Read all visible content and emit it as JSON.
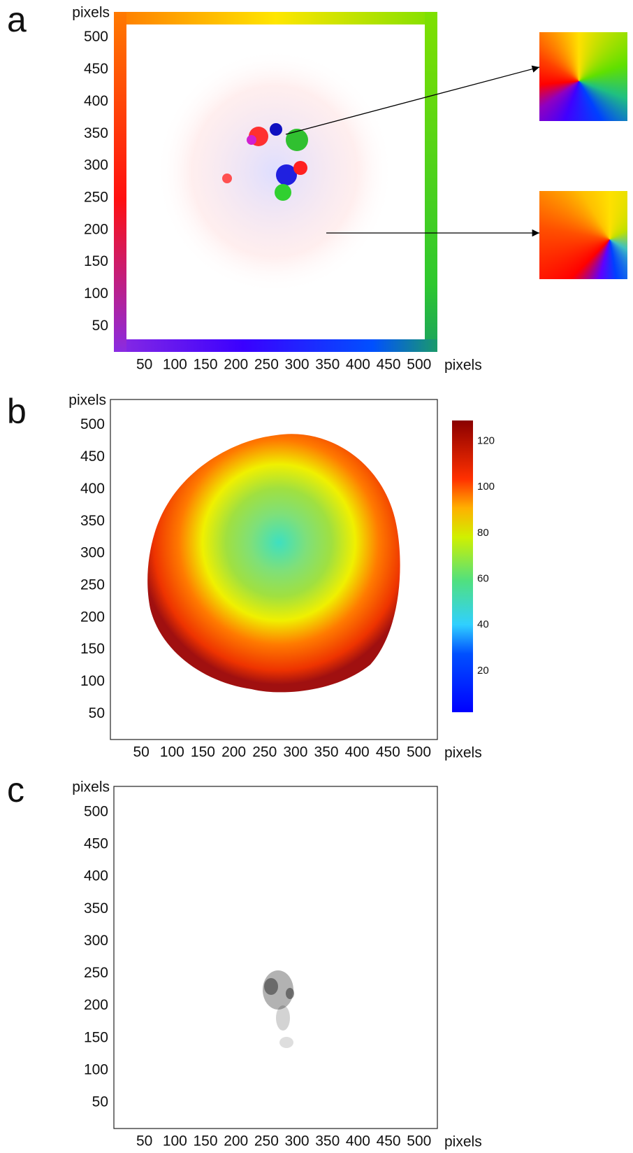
{
  "chart_data": [
    {
      "type": "image",
      "panel_label": "a",
      "xlabel": "pixels",
      "ylabel": "pixels",
      "xlim": [
        0,
        530
      ],
      "ylim": [
        10,
        540
      ],
      "xticks": [
        50,
        100,
        150,
        200,
        250,
        300,
        350,
        400,
        450,
        500
      ],
      "yticks": [
        50,
        100,
        150,
        200,
        250,
        300,
        350,
        400,
        450,
        500
      ]
    },
    {
      "type": "heatmap",
      "panel_label": "b",
      "xlabel": "pixels",
      "ylabel": "pixels",
      "xlim": [
        0,
        530
      ],
      "ylim": [
        10,
        540
      ],
      "xticks": [
        50,
        100,
        150,
        200,
        250,
        300,
        350,
        400,
        450,
        500
      ],
      "yticks": [
        50,
        100,
        150,
        200,
        250,
        300,
        350,
        400,
        450,
        500
      ],
      "clim": [
        2,
        129
      ],
      "cticks": [
        20,
        40,
        60,
        80,
        100,
        120
      ]
    },
    {
      "type": "image",
      "panel_label": "c",
      "xlabel": "pixels",
      "ylabel": "pixels",
      "xlim": [
        0,
        530
      ],
      "ylim": [
        10,
        540
      ],
      "xticks": [
        50,
        100,
        150,
        200,
        250,
        300,
        350,
        400,
        450,
        500
      ],
      "yticks": [
        50,
        100,
        150,
        200,
        250,
        300,
        350,
        400,
        450,
        500
      ]
    }
  ]
}
